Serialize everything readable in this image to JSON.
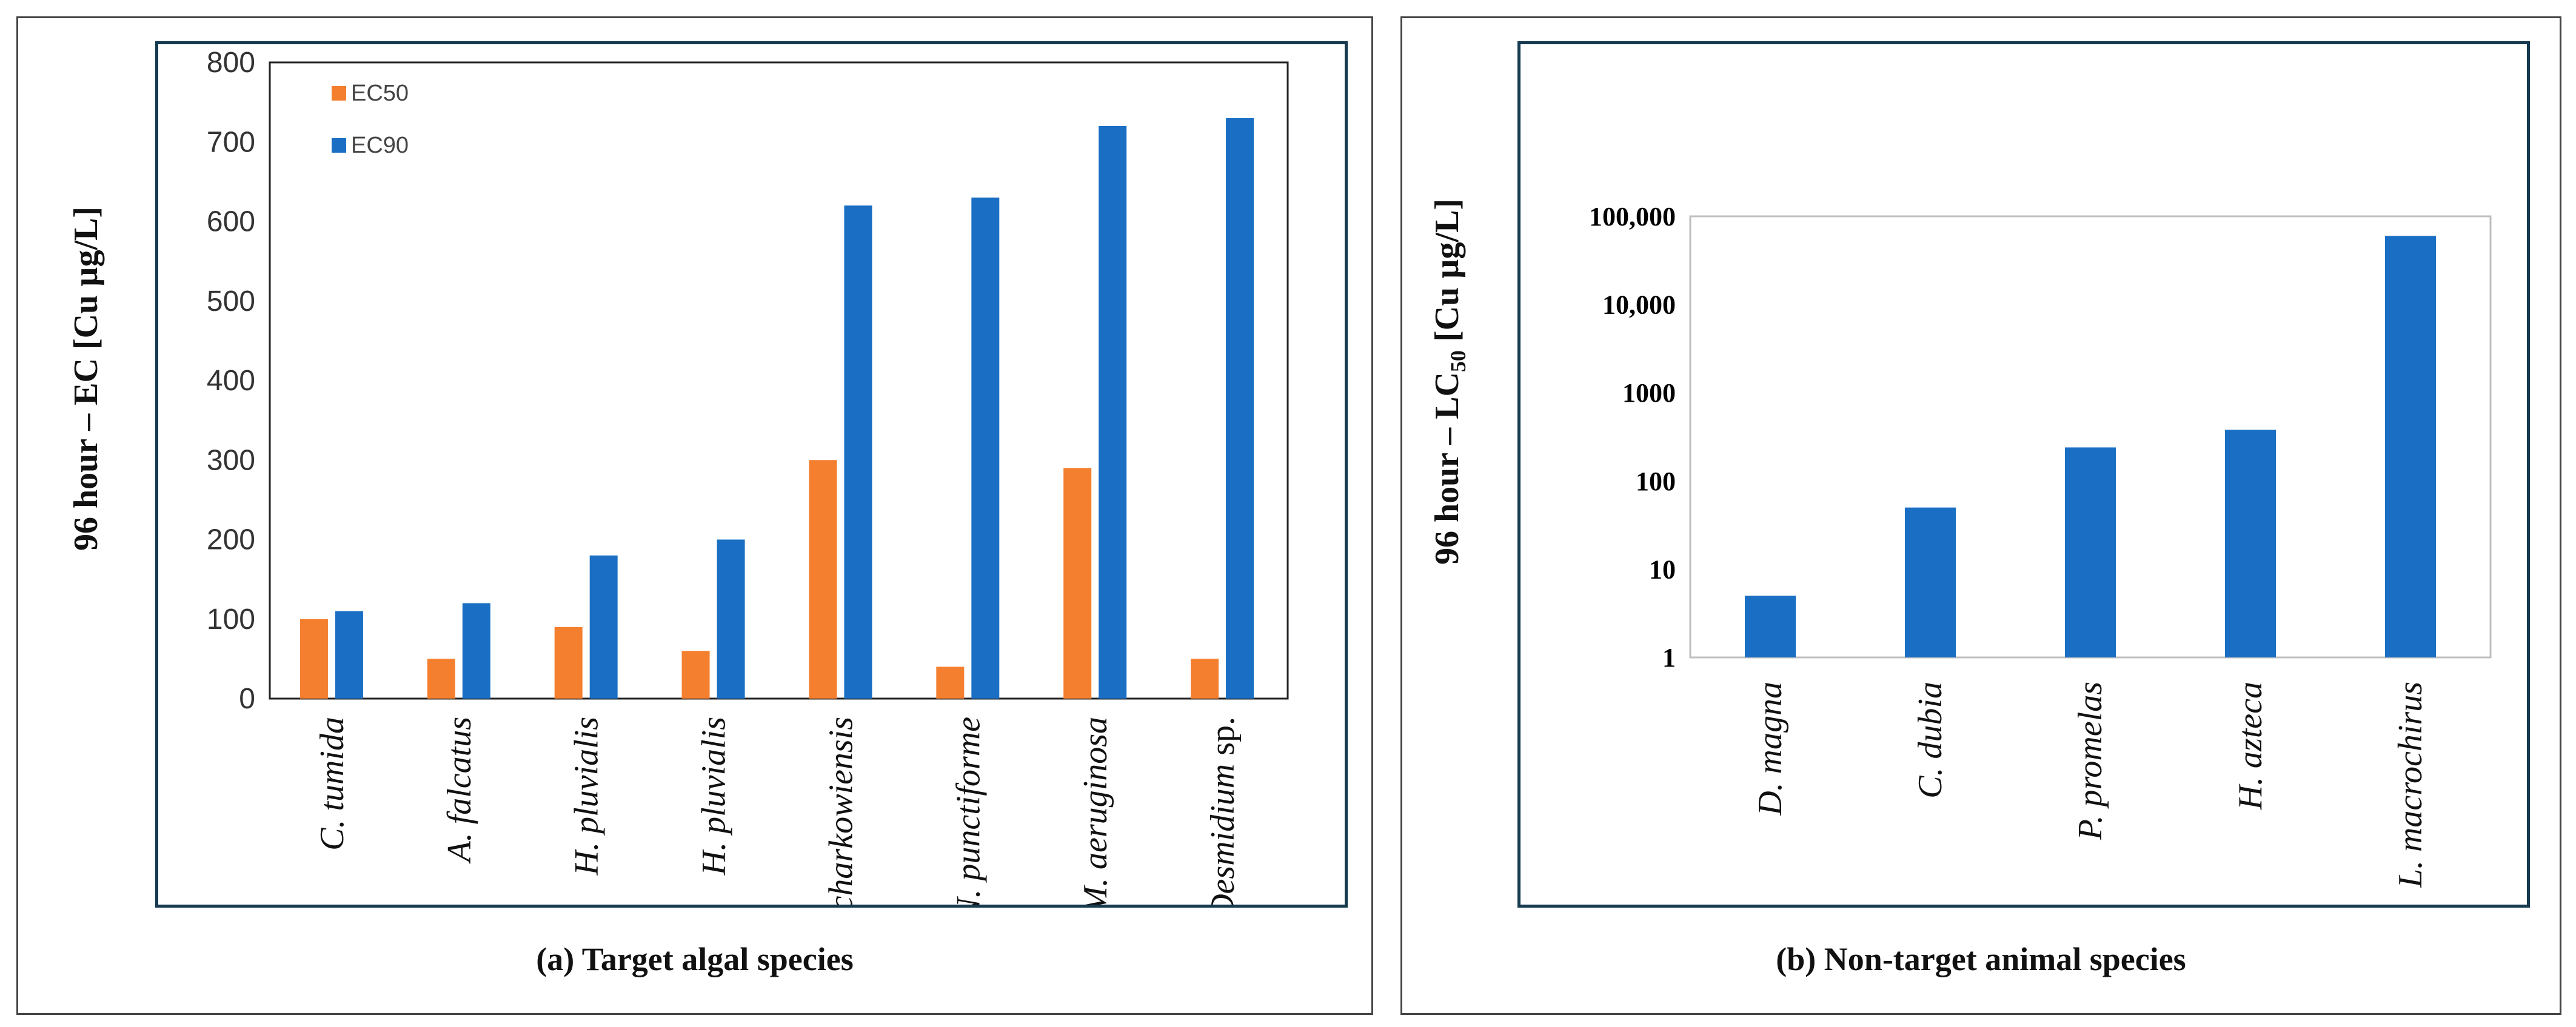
{
  "chart_data": [
    {
      "type": "bar",
      "caption": "(a) Target algal species",
      "ylabel": "96 hour – EC [Cu µg/L]",
      "ylim": [
        0,
        800
      ],
      "yticks": [
        0,
        100,
        200,
        300,
        400,
        500,
        600,
        700,
        800
      ],
      "categories": [
        {
          "italic": "C. tumida",
          "plain": ""
        },
        {
          "italic": "A. falcatus",
          "plain": ""
        },
        {
          "italic": "H. pluvialis",
          "plain": ""
        },
        {
          "italic": "H. pluvialis",
          "plain": ""
        },
        {
          "italic": "P. charkowiensis",
          "plain": ""
        },
        {
          "italic": "N. punctiforme",
          "plain": ""
        },
        {
          "italic": ", M. aeruginosa",
          "plain": ""
        },
        {
          "italic": "Desmidium",
          "plain": " sp."
        }
      ],
      "series": [
        {
          "name": "EC50",
          "color": "#f47f2f",
          "values": [
            100,
            50,
            90,
            60,
            300,
            40,
            290,
            50
          ]
        },
        {
          "name": "EC90",
          "color": "#1a6fc4",
          "values": [
            110,
            120,
            180,
            200,
            620,
            630,
            720,
            730
          ]
        }
      ],
      "legend": "top-left"
    },
    {
      "type": "bar",
      "caption": "(b) Non-target animal species",
      "ylabel_prefix": "96 hour – LC",
      "ylabel_sub": "50",
      "ylabel_suffix": " [Cu µg/L]",
      "yscale": "log",
      "ylim": [
        1,
        100000
      ],
      "yticks": [
        1,
        10,
        100,
        1000,
        10000,
        100000
      ],
      "ytick_labels": [
        "1",
        "10",
        "100",
        "1000",
        "10,000",
        "100,000"
      ],
      "categories": [
        "D. magna",
        "C. dubia",
        "P. promelas",
        "H. azteca",
        "L. macrochirus"
      ],
      "series": [
        {
          "name": "LC50",
          "color": "#1a6fc4",
          "values": [
            5,
            50,
            240,
            380,
            60000
          ]
        }
      ]
    }
  ]
}
